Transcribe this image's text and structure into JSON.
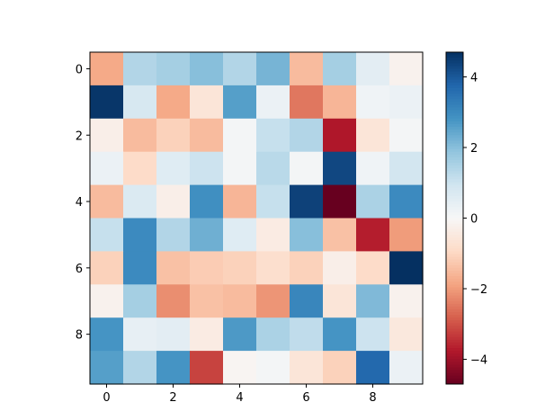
{
  "chart_data": {
    "type": "heatmap",
    "title": "",
    "xlabel": "",
    "ylabel": "",
    "rows": 10,
    "cols": 10,
    "x_ticks": [
      "0",
      "2",
      "4",
      "6",
      "8"
    ],
    "x_tick_values": [
      0,
      2,
      4,
      6,
      8
    ],
    "y_ticks": [
      "0",
      "2",
      "4",
      "6",
      "8"
    ],
    "y_tick_values": [
      0,
      2,
      4,
      6,
      8
    ],
    "colormap": "RdBu",
    "vmin": -4.7,
    "vmax": 4.7,
    "colorbar": {
      "ticks": [
        "4",
        "2",
        "0",
        "−2",
        "−4"
      ],
      "tick_values": [
        4,
        2,
        0,
        -2,
        -4
      ],
      "range": [
        -4.7,
        4.7
      ]
    },
    "grid": false,
    "values": [
      [
        -1.8,
        1.4,
        1.6,
        2.0,
        1.4,
        2.2,
        -1.5,
        1.6,
        0.5,
        -0.2
      ],
      [
        4.6,
        0.8,
        -1.8,
        -0.6,
        2.6,
        0.3,
        -2.5,
        -1.6,
        0.2,
        0.3
      ],
      [
        -0.3,
        -1.5,
        -1.1,
        -1.5,
        0.1,
        1.1,
        1.4,
        -3.8,
        -0.6,
        0.1
      ],
      [
        0.3,
        -0.9,
        0.6,
        1.0,
        0.1,
        1.3,
        0.1,
        4.3,
        0.2,
        0.9
      ],
      [
        -1.5,
        0.7,
        -0.3,
        2.9,
        -1.6,
        1.1,
        4.4,
        -4.7,
        1.5,
        3.0
      ],
      [
        1.1,
        3.0,
        1.4,
        2.3,
        0.6,
        -0.4,
        2.0,
        -1.4,
        -3.7,
        -2.0
      ],
      [
        -1.1,
        3.0,
        -1.4,
        -1.2,
        -1.1,
        -0.8,
        -1.1,
        -0.3,
        -0.9,
        4.7
      ],
      [
        -0.2,
        1.6,
        -2.2,
        -1.4,
        -1.5,
        -2.1,
        3.1,
        -0.6,
        2.1,
        -0.2
      ],
      [
        2.8,
        0.4,
        0.5,
        -0.4,
        2.7,
        1.5,
        1.2,
        2.8,
        1.0,
        -0.5
      ],
      [
        2.6,
        1.4,
        2.8,
        -3.2,
        -0.1,
        0.1,
        -0.6,
        -1.1,
        3.7,
        0.3
      ]
    ]
  }
}
